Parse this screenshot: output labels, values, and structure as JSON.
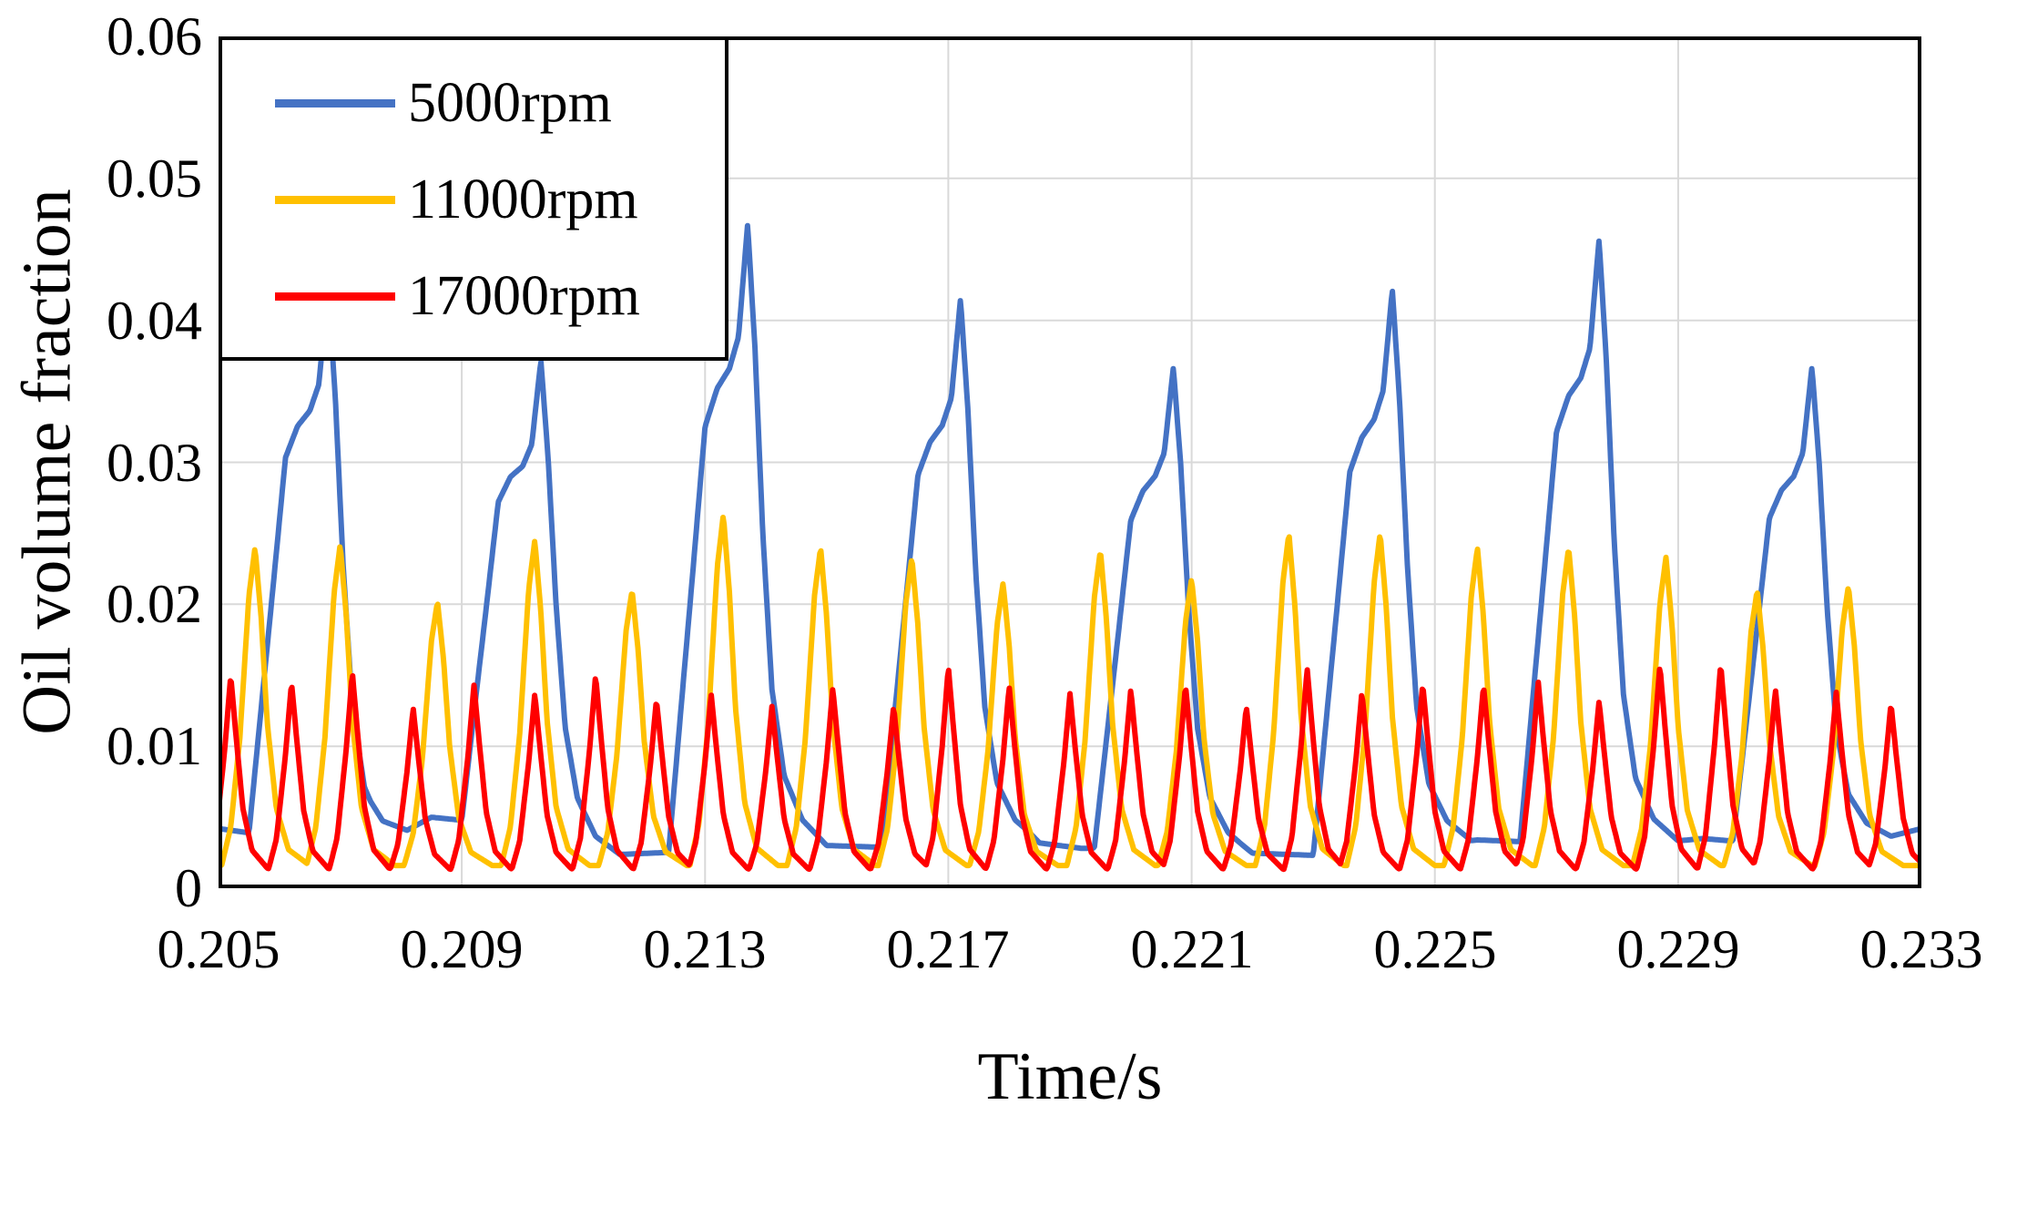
{
  "figure": {
    "background": "#ffffff"
  },
  "chart_data": {
    "type": "line",
    "title": "",
    "xlabel": "Time/s",
    "ylabel": "Oil volume fraction",
    "xlim": [
      0.205,
      0.233
    ],
    "ylim": [
      0,
      0.06
    ],
    "xticks": [
      0.205,
      0.209,
      0.213,
      0.217,
      0.221,
      0.225,
      0.229,
      0.233
    ],
    "xtick_labels": [
      "0.205",
      "0.209",
      "0.213",
      "0.217",
      "0.221",
      "0.225",
      "0.229",
      "0.233"
    ],
    "yticks": [
      0,
      0.01,
      0.02,
      0.03,
      0.04,
      0.05,
      0.06
    ],
    "ytick_labels": [
      "0",
      "0.01",
      "0.02",
      "0.03",
      "0.04",
      "0.05",
      "0.06"
    ],
    "grid": true,
    "grid_color": "#d9d9d9",
    "axis_color": "#000000",
    "legend": {
      "position": "top-left",
      "border": true
    },
    "series": [
      {
        "name": "5000rpm",
        "color": "#4472C4",
        "baseline": 0.003,
        "baseline_points": [
          [
            0.205,
            0.0042
          ],
          [
            0.206,
            0.0036
          ],
          [
            0.2075,
            0.0027
          ],
          [
            0.2085,
            0.005
          ],
          [
            0.2092,
            0.0047
          ],
          [
            0.21,
            0.0036
          ],
          [
            0.2112,
            0.0023
          ],
          [
            0.2128,
            0.0026
          ],
          [
            0.2143,
            0.0031
          ],
          [
            0.2158,
            0.0029
          ],
          [
            0.217,
            0.003
          ],
          [
            0.2183,
            0.0033
          ],
          [
            0.2192,
            0.0028
          ],
          [
            0.2204,
            0.003
          ],
          [
            0.2218,
            0.0025
          ],
          [
            0.2231,
            0.0023
          ],
          [
            0.2244,
            0.0028
          ],
          [
            0.2257,
            0.0034
          ],
          [
            0.2269,
            0.0032
          ],
          [
            0.2282,
            0.003
          ],
          [
            0.2294,
            0.0035
          ],
          [
            0.2305,
            0.0031
          ],
          [
            0.2317,
            0.0028
          ],
          [
            0.233,
            0.0042
          ]
        ],
        "pulse_profile": [
          [
            -0.0013,
            0.0
          ],
          [
            -0.0009,
            0.45
          ],
          [
            -0.0007,
            0.68
          ],
          [
            -0.0005,
            0.74
          ],
          [
            -0.0003,
            0.77
          ],
          [
            -0.00015,
            0.82
          ],
          [
            0,
            1.0
          ],
          [
            0.00012,
            0.8
          ],
          [
            0.00025,
            0.5
          ],
          [
            0.0004,
            0.25
          ],
          [
            0.0006,
            0.11
          ],
          [
            0.0009,
            0.04
          ],
          [
            0.0013,
            0.0
          ]
        ],
        "peaks": [
          [
            0.2068,
            0.0425
          ],
          [
            0.2103,
            0.0372
          ],
          [
            0.2137,
            0.0468
          ],
          [
            0.2172,
            0.0415
          ],
          [
            0.2207,
            0.0367
          ],
          [
            0.2243,
            0.0422
          ],
          [
            0.2277,
            0.0457
          ],
          [
            0.2312,
            0.0367
          ]
        ]
      },
      {
        "name": "11000rpm",
        "color": "#FFC000",
        "baseline": 0.0016,
        "pulse_profile": [
          [
            -0.00055,
            0.0
          ],
          [
            -0.0004,
            0.12
          ],
          [
            -0.00025,
            0.4
          ],
          [
            -0.0001,
            0.85
          ],
          [
            0,
            1.0
          ],
          [
            0.0001,
            0.78
          ],
          [
            0.0002,
            0.45
          ],
          [
            0.00035,
            0.18
          ],
          [
            0.00055,
            0.05
          ],
          [
            0.0009,
            0.0
          ]
        ],
        "peaks": [
          [
            0.2056,
            0.024
          ],
          [
            0.207,
            0.0242
          ],
          [
            0.2086,
            0.0202
          ],
          [
            0.2102,
            0.0245
          ],
          [
            0.2118,
            0.021
          ],
          [
            0.2133,
            0.0263
          ],
          [
            0.2149,
            0.024
          ],
          [
            0.2164,
            0.0233
          ],
          [
            0.2179,
            0.0215
          ],
          [
            0.2195,
            0.0238
          ],
          [
            0.221,
            0.0218
          ],
          [
            0.2226,
            0.025
          ],
          [
            0.2241,
            0.025
          ],
          [
            0.2257,
            0.024
          ],
          [
            0.2272,
            0.024
          ],
          [
            0.2288,
            0.0233
          ],
          [
            0.2303,
            0.021
          ],
          [
            0.2318,
            0.0213
          ]
        ]
      },
      {
        "name": "17000rpm",
        "color": "#FF0000",
        "baseline": 0.001,
        "pulse_profile": [
          [
            -0.0004,
            0.0
          ],
          [
            -0.00025,
            0.18
          ],
          [
            -0.0001,
            0.62
          ],
          [
            0,
            1.0
          ],
          [
            8e-05,
            0.72
          ],
          [
            0.0002,
            0.33
          ],
          [
            0.00035,
            0.12
          ],
          [
            0.0006,
            0.03
          ],
          [
            0.0009,
            0.0
          ]
        ],
        "peaks": [
          [
            0.2052,
            0.015
          ],
          [
            0.2062,
            0.0145
          ],
          [
            0.2072,
            0.0152
          ],
          [
            0.2082,
            0.0127
          ],
          [
            0.2092,
            0.0143
          ],
          [
            0.2102,
            0.0137
          ],
          [
            0.2112,
            0.015
          ],
          [
            0.2122,
            0.0133
          ],
          [
            0.2131,
            0.0137
          ],
          [
            0.2141,
            0.0128
          ],
          [
            0.2151,
            0.0141
          ],
          [
            0.2161,
            0.0128
          ],
          [
            0.217,
            0.0156
          ],
          [
            0.218,
            0.0142
          ],
          [
            0.219,
            0.0137
          ],
          [
            0.22,
            0.014
          ],
          [
            0.2209,
            0.0143
          ],
          [
            0.2219,
            0.0128
          ],
          [
            0.2229,
            0.0155
          ],
          [
            0.2238,
            0.0138
          ],
          [
            0.2248,
            0.0144
          ],
          [
            0.2258,
            0.0143
          ],
          [
            0.2267,
            0.0145
          ],
          [
            0.2277,
            0.0132
          ],
          [
            0.2287,
            0.0157
          ],
          [
            0.2297,
            0.0158
          ],
          [
            0.2306,
            0.014
          ],
          [
            0.2316,
            0.0138
          ],
          [
            0.2325,
            0.013
          ]
        ]
      }
    ]
  }
}
